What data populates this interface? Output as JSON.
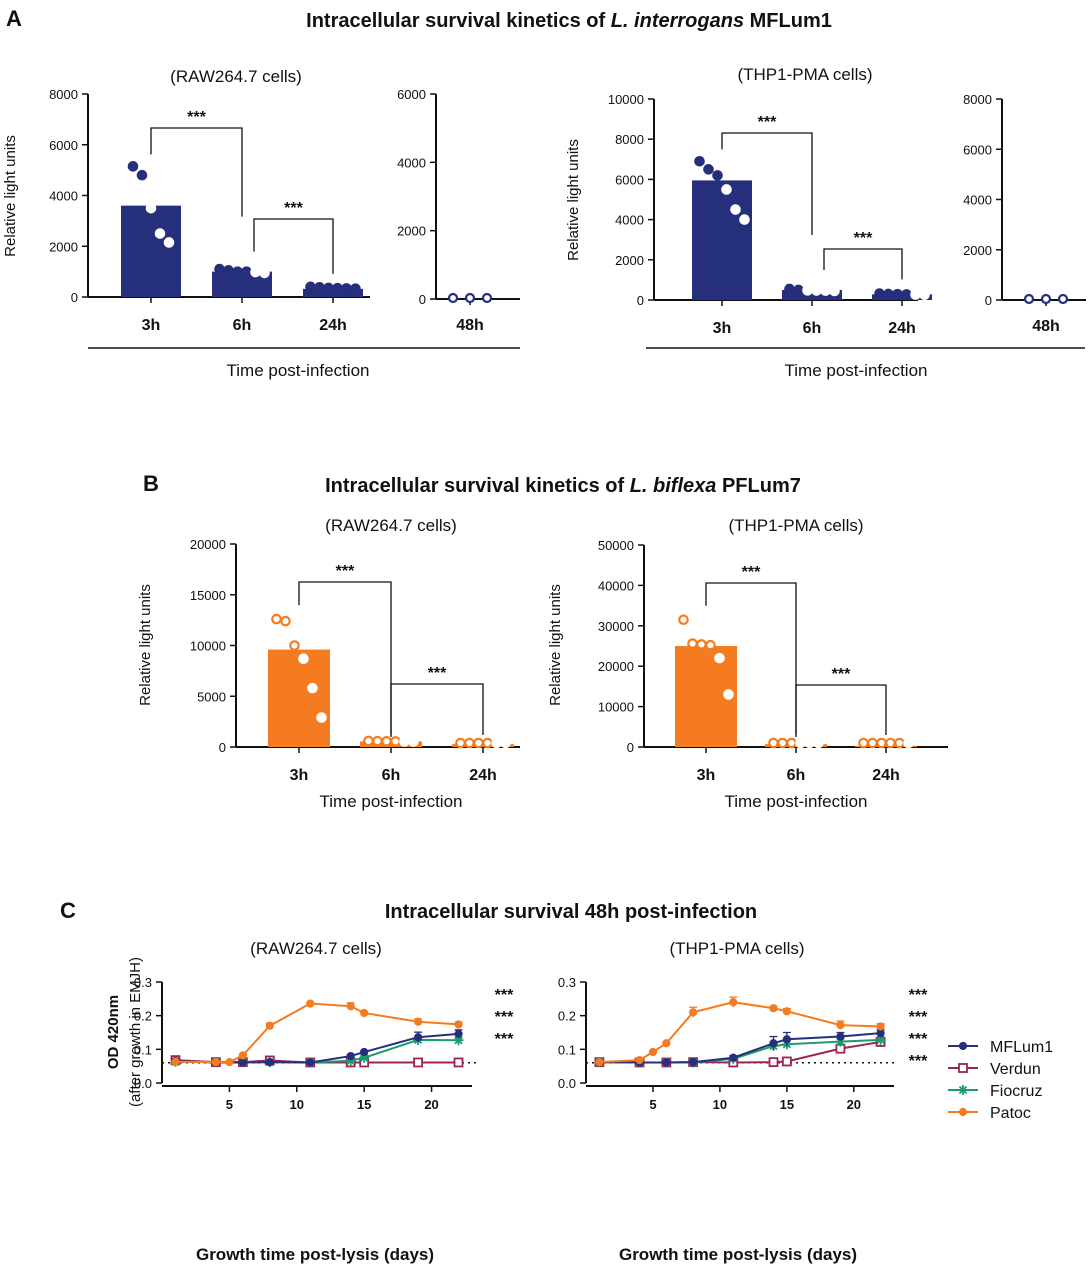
{
  "panelA": {
    "label": "A",
    "title_pre": "Intracellular survival kinetics of ",
    "title_species": "L. interrogans",
    "title_post": " MFLum1",
    "xlabel": "Time post-infection",
    "color": "#262f7c",
    "charts": [
      {
        "subtitle": "(RAW264.7 cells)",
        "ylabel": "Relative light units",
        "main": {
          "ylim": [
            0,
            8000
          ],
          "yticks": [
            "0",
            "2000",
            "4000",
            "6000",
            "8000"
          ],
          "categories": [
            "3h",
            "6h",
            "24h"
          ],
          "values": [
            3600,
            1000,
            320
          ],
          "points": [
            [
              5150,
              4800,
              3500,
              2500,
              2150
            ],
            [
              1100,
              1050,
              1000,
              1000,
              980,
              950
            ],
            [
              400,
              380,
              360,
              350,
              340,
              330
            ]
          ]
        },
        "side": {
          "ylim": [
            0,
            6000
          ],
          "yticks": [
            "0",
            "2000",
            "4000",
            "6000"
          ],
          "categories": [
            "48h"
          ],
          "points": [
            0,
            0,
            0
          ]
        },
        "significance": [
          "***",
          "***"
        ]
      },
      {
        "subtitle": "(THP1-PMA cells)",
        "ylabel": "Relative light units",
        "main": {
          "ylim": [
            0,
            10000
          ],
          "yticks": [
            "0",
            "2000",
            "4000",
            "6000",
            "8000",
            "10000"
          ],
          "categories": [
            "3h",
            "6h",
            "24h"
          ],
          "values": [
            5950,
            500,
            280
          ],
          "points": [
            [
              6900,
              6500,
              6200,
              5500,
              4500,
              4000
            ],
            [
              550,
              500,
              480,
              470,
              460,
              450
            ],
            [
              320,
              300,
              290,
              280,
              270,
              260
            ]
          ]
        },
        "side": {
          "ylim": [
            0,
            8000
          ],
          "yticks": [
            "0",
            "2000",
            "4000",
            "6000",
            "8000"
          ],
          "categories": [
            "48h"
          ],
          "points": [
            0,
            0,
            0
          ]
        },
        "significance": [
          "***",
          "***"
        ]
      }
    ]
  },
  "panelB": {
    "label": "B",
    "title_pre": "Intracellular survival kinetics of ",
    "title_species": "L. biflexa",
    "title_post": " PFLum7",
    "xlabel": "Time post-infection",
    "color": "#f47b20",
    "charts": [
      {
        "subtitle": "(RAW264.7 cells)",
        "ylabel": "Relative light units",
        "ylim": [
          0,
          20000
        ],
        "yticks": [
          "0",
          "5000",
          "10000",
          "15000",
          "20000"
        ],
        "categories": [
          "3h",
          "6h",
          "24h"
        ],
        "values": [
          9600,
          550,
          280
        ],
        "points": [
          [
            12600,
            12400,
            10000,
            8700,
            5800,
            2900
          ],
          [
            600,
            580,
            560,
            550,
            540,
            530
          ],
          [
            320,
            300,
            290,
            280,
            270,
            260
          ]
        ],
        "significance": [
          "***",
          "***"
        ]
      },
      {
        "subtitle": "(THP1-PMA cells)",
        "ylabel": "Relative light units",
        "ylim": [
          0,
          50000
        ],
        "yticks": [
          "0",
          "10000",
          "20000",
          "30000",
          "40000",
          "50000"
        ],
        "categories": [
          "3h",
          "6h",
          "24h"
        ],
        "values": [
          25000,
          700,
          300
        ],
        "points": [
          [
            31500,
            25600,
            25400,
            25200,
            22000,
            13000
          ],
          [
            750,
            720,
            700,
            690,
            680,
            670
          ],
          [
            350,
            330,
            320,
            310,
            300,
            290
          ]
        ],
        "significance": [
          "***",
          "***"
        ]
      }
    ]
  },
  "panelC": {
    "label": "C",
    "title": "Intracellular survival 48h post-infection",
    "legend": [
      {
        "name": "MFLum1",
        "color": "#262f7c",
        "marker": "circle"
      },
      {
        "name": "Verdun",
        "color": "#9c2456",
        "marker": "square"
      },
      {
        "name": "Fiocruz",
        "color": "#1b9c6b",
        "marker": "star"
      },
      {
        "name": "Patoc",
        "color": "#f47b20",
        "marker": "circle"
      }
    ],
    "charts": [
      {
        "subtitle": "(RAW264.7 cells)",
        "ylabel_main": "OD 420nm",
        "ylabel_sub": "(after growth in EMJH)",
        "xlabel": "Growth time post-lysis (days)",
        "xlim": [
          0,
          23
        ],
        "ylim": [
          0,
          0.3
        ],
        "xticks": [
          "5",
          "10",
          "15",
          "20"
        ],
        "yticks": [
          "0.0",
          "0.1",
          "0.2",
          "0.3"
        ],
        "baseline": 0.06,
        "series": [
          {
            "name": "MFLum1",
            "x": [
              1,
              4,
              6,
              8,
              11,
              14,
              15,
              19,
              22
            ],
            "y": [
              0.065,
              0.061,
              0.061,
              0.062,
              0.061,
              0.08,
              0.092,
              0.136,
              0.146
            ],
            "err": [
              0.008,
              0.003,
              0.003,
              0.003,
              0.003,
              0.004,
              0.004,
              0.015,
              0.012
            ]
          },
          {
            "name": "Verdun",
            "x": [
              1,
              4,
              6,
              8,
              11,
              14,
              15,
              19,
              22
            ],
            "y": [
              0.068,
              0.062,
              0.062,
              0.067,
              0.061,
              0.061,
              0.061,
              0.061,
              0.061
            ],
            "err": [
              0.008,
              0.003,
              0.003,
              0.006,
              0.003,
              0.002,
              0.002,
              0.002,
              0.002
            ]
          },
          {
            "name": "Fiocruz",
            "x": [
              1,
              4,
              6,
              8,
              11,
              14,
              15,
              19,
              22
            ],
            "y": [
              0.063,
              0.062,
              0.062,
              0.062,
              0.061,
              0.066,
              0.075,
              0.128,
              0.127
            ],
            "err": [
              0.004,
              0.003,
              0.003,
              0.003,
              0.003,
              0.004,
              0.004,
              0.006,
              0.005
            ]
          },
          {
            "name": "Patoc",
            "x": [
              1,
              4,
              5,
              6,
              8,
              11,
              14,
              15,
              19,
              22
            ],
            "y": [
              0.063,
              0.062,
              0.062,
              0.082,
              0.17,
              0.236,
              0.228,
              0.208,
              0.182,
              0.174
            ],
            "err": [
              0.003,
              0.003,
              0.003,
              0.004,
              0.008,
              0.003,
              0.01,
              0.003,
              0.008,
              0.007
            ]
          }
        ],
        "significance": [
          {
            "label": "***",
            "color": "#f47b20"
          },
          {
            "label": "***",
            "color": "#262f7c"
          },
          {
            "label": "***",
            "color": "#1b9c6b"
          }
        ]
      },
      {
        "subtitle": "(THP1-PMA cells)",
        "xlabel": "Growth time post-lysis (days)",
        "xlim": [
          0,
          23
        ],
        "ylim": [
          0,
          0.3
        ],
        "xticks": [
          "5",
          "10",
          "15",
          "20"
        ],
        "yticks": [
          "0.0",
          "0.1",
          "0.2",
          "0.3"
        ],
        "baseline": 0.06,
        "series": [
          {
            "name": "MFLum1",
            "x": [
              1,
              4,
              6,
              8,
              11,
              14,
              15,
              19,
              22
            ],
            "y": [
              0.062,
              0.061,
              0.061,
              0.062,
              0.075,
              0.118,
              0.13,
              0.138,
              0.148
            ],
            "err": [
              0.003,
              0.003,
              0.003,
              0.003,
              0.006,
              0.02,
              0.02,
              0.012,
              0.01
            ]
          },
          {
            "name": "Verdun",
            "x": [
              1,
              4,
              6,
              8,
              11,
              14,
              15,
              19,
              22
            ],
            "y": [
              0.062,
              0.061,
              0.061,
              0.062,
              0.061,
              0.062,
              0.064,
              0.102,
              0.122
            ],
            "err": [
              0.003,
              0.003,
              0.003,
              0.003,
              0.003,
              0.003,
              0.003,
              0.008,
              0.015
            ]
          },
          {
            "name": "Fiocruz",
            "x": [
              1,
              4,
              6,
              8,
              11,
              14,
              15,
              19,
              22
            ],
            "y": [
              0.062,
              0.061,
              0.061,
              0.061,
              0.072,
              0.11,
              0.115,
              0.123,
              0.128
            ],
            "err": [
              0.003,
              0.003,
              0.003,
              0.003,
              0.004,
              0.01,
              0.012,
              0.008,
              0.008
            ]
          },
          {
            "name": "Patoc",
            "x": [
              1,
              4,
              5,
              6,
              8,
              11,
              14,
              15,
              19,
              22
            ],
            "y": [
              0.062,
              0.068,
              0.092,
              0.118,
              0.21,
              0.24,
              0.222,
              0.213,
              0.172,
              0.168
            ],
            "err": [
              0.003,
              0.003,
              0.004,
              0.003,
              0.015,
              0.015,
              0.006,
              0.008,
              0.012,
              0.008
            ]
          }
        ],
        "significance": [
          {
            "label": "***",
            "color": "#f47b20"
          },
          {
            "label": "***",
            "color": "#262f7c"
          },
          {
            "label": "***",
            "color": "#1b9c6b"
          },
          {
            "label": "***",
            "color": "#9c2456"
          }
        ]
      }
    ]
  },
  "chart_data": [
    {
      "type": "bar",
      "title": "(RAW264.7 cells) L. interrogans MFLum1",
      "categories": [
        "3h",
        "6h",
        "24h",
        "48h"
      ],
      "values": [
        3600,
        1000,
        320,
        0
      ],
      "ylabel": "Relative light units",
      "xlabel": "Time post-infection"
    },
    {
      "type": "bar",
      "title": "(THP1-PMA cells) L. interrogans MFLum1",
      "categories": [
        "3h",
        "6h",
        "24h",
        "48h"
      ],
      "values": [
        5950,
        500,
        280,
        0
      ],
      "ylabel": "Relative light units",
      "xlabel": "Time post-infection"
    },
    {
      "type": "bar",
      "title": "(RAW264.7 cells) L. biflexa PFLum7",
      "categories": [
        "3h",
        "6h",
        "24h"
      ],
      "values": [
        9600,
        550,
        280
      ],
      "ylim": [
        0,
        20000
      ],
      "ylabel": "Relative light units",
      "xlabel": "Time post-infection"
    },
    {
      "type": "bar",
      "title": "(THP1-PMA cells) L. biflexa PFLum7",
      "categories": [
        "3h",
        "6h",
        "24h"
      ],
      "values": [
        25000,
        700,
        300
      ],
      "ylim": [
        0,
        50000
      ],
      "ylabel": "Relative light units",
      "xlabel": "Time post-infection"
    },
    {
      "type": "line",
      "title": "(RAW264.7 cells) Intracellular survival 48h post-infection",
      "xlabel": "Growth time post-lysis (days)",
      "ylabel": "OD 420nm (after growth in EMJH)",
      "ylim": [
        0,
        0.3
      ],
      "series": [
        "MFLum1",
        "Verdun",
        "Fiocruz",
        "Patoc"
      ]
    },
    {
      "type": "line",
      "title": "(THP1-PMA cells) Intracellular survival 48h post-infection",
      "xlabel": "Growth time post-lysis (days)",
      "ylabel": "OD 420nm (after growth in EMJH)",
      "ylim": [
        0,
        0.3
      ],
      "series": [
        "MFLum1",
        "Verdun",
        "Fiocruz",
        "Patoc"
      ]
    }
  ]
}
